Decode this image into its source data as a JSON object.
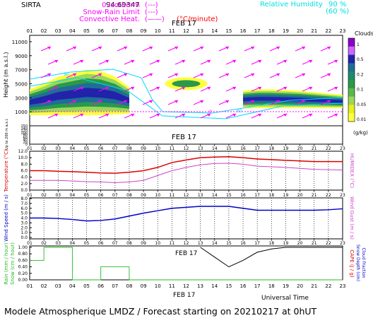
{
  "header": {
    "site": "SIRTA",
    "coords": "94.69347",
    "legend_left": [
      {
        "label": "0 Isotherm",
        "swatch": "(---)",
        "color": "#ff00ff"
      },
      {
        "label": "Snow-Rain Limit",
        "swatch": "(---)",
        "color": "#ff00ff"
      },
      {
        "label": "Convective Heat.",
        "swatch": "(——)",
        "color": "#ff00ff",
        "extra": "(°C/minute)",
        "extra_color": "#ff0000"
      }
    ],
    "legend_right": [
      {
        "label": "Relative Humidity",
        "v1": "90 %",
        "v2": "(60 %)",
        "color": "#00e0e0"
      }
    ]
  },
  "footer": {
    "universal_time": "Universal Time",
    "date": "FEB 17",
    "title": "Modele Atmospherique LMDZ / Forecast starting on 20210217 at 0hUT"
  },
  "hour_labels": [
    "01",
    "02",
    "03",
    "04",
    "05",
    "06",
    "07",
    "08",
    "09",
    "10",
    "11",
    "12",
    "13",
    "14",
    "15",
    "16",
    "17",
    "18",
    "19",
    "20",
    "21",
    "22",
    "23"
  ],
  "date_label": "FEB 17",
  "colors": {
    "red": "#e00000",
    "violet": "#cc44cc",
    "blue": "#0000cc",
    "cyan": "#00d8ff",
    "magenta": "#ff00ff",
    "black": "#000000",
    "green": "#22bb22"
  },
  "chart_data": [
    {
      "type": "heatmap",
      "name": "clouds",
      "ylabel": "Height  (m a.s.l.)",
      "ylabel2": "Up to 200 m a.s.l.",
      "y_ticks_upper": [
        "11000",
        "9000",
        "7000",
        "5000",
        "3000",
        "1000"
      ],
      "y_ticks_lower": [
        "150",
        "140",
        "120",
        "100",
        "80",
        "60",
        "40",
        "20",
        "0"
      ],
      "colorbar_title": "Clouds",
      "colorbar_unit": "(g/kg)",
      "colorbar_ticks": [
        "1",
        "0.5",
        "0.2",
        "0.1",
        "0.05",
        "0.01"
      ],
      "colorbar_colors": [
        "#8800cc",
        "#cc66ff",
        "#2222aa",
        "#1e6e96",
        "#1c8c6a",
        "#2a9a4a",
        "#5ab84a",
        "#9bd85a",
        "#e6f01a",
        "#ffff40"
      ],
      "contour_labels": [
        "90",
        "60",
        "0"
      ],
      "x": [
        "01",
        "02",
        "03",
        "04",
        "05",
        "06",
        "07",
        "08",
        "09",
        "10",
        "11",
        "12",
        "13",
        "14",
        "15",
        "16",
        "17",
        "18",
        "19",
        "20",
        "21",
        "22",
        "23"
      ],
      "cloud_base_m": [
        500,
        500,
        500,
        500,
        500,
        500,
        600,
        700,
        null,
        null,
        null,
        null,
        null,
        null,
        null,
        1500,
        1500,
        1500,
        1500,
        1500,
        1500,
        1500,
        1500
      ],
      "cloud_top_m": [
        4200,
        5000,
        6000,
        6500,
        7000,
        6800,
        6000,
        4500,
        null,
        null,
        null,
        null,
        null,
        null,
        null,
        4000,
        4200,
        4200,
        4100,
        4000,
        3800,
        3600,
        3400
      ]
    },
    {
      "type": "line",
      "name": "temperature",
      "ylabel": "Temperature (°C)",
      "ylabel_right": "HUMIDEX (°C)",
      "y_ticks": [
        "12.0",
        "10.0",
        "8.0",
        "6.0",
        "4.0",
        "2.0",
        "0.0"
      ],
      "ylim": [
        0,
        12
      ],
      "x": [
        "01",
        "02",
        "03",
        "04",
        "05",
        "06",
        "07",
        "08",
        "09",
        "10",
        "11",
        "12",
        "13",
        "14",
        "15",
        "16",
        "17",
        "18",
        "19",
        "20",
        "21",
        "22",
        "23"
      ],
      "series": [
        {
          "values": [
            6.0,
            6.0,
            5.8,
            5.7,
            5.5,
            5.3,
            5.2,
            5.5,
            6.0,
            7.0,
            8.5,
            9.3,
            10.0,
            10.2,
            10.3,
            10.0,
            9.6,
            9.4,
            9.2,
            9.0,
            8.8,
            8.8,
            8.8
          ],
          "color": "#e00000"
        },
        {
          "values": [
            3.0,
            3.0,
            3.0,
            2.8,
            2.6,
            2.5,
            2.3,
            2.5,
            3.0,
            4.5,
            6.0,
            7.0,
            7.8,
            8.2,
            8.3,
            8.0,
            7.4,
            7.2,
            7.0,
            6.7,
            6.4,
            6.3,
            6.2
          ],
          "color": "#cc44cc"
        }
      ]
    },
    {
      "type": "line",
      "name": "wind",
      "ylabel": "Wind Speed (m / s)",
      "ylabel_right": "Wind Gust (m / s)",
      "y_ticks": [
        "8.0",
        "7.0",
        "6.0",
        "5.0",
        "4.0",
        "3.0",
        "2.0",
        "1.0",
        "0.0"
      ],
      "ylim": [
        0,
        8
      ],
      "x": [
        "01",
        "02",
        "03",
        "04",
        "05",
        "06",
        "07",
        "08",
        "09",
        "10",
        "11",
        "12",
        "13",
        "14",
        "15",
        "16",
        "17",
        "18",
        "19",
        "20",
        "21",
        "22",
        "23"
      ],
      "series": [
        {
          "values": [
            4.0,
            4.0,
            3.9,
            3.7,
            3.4,
            3.5,
            3.8,
            4.4,
            5.0,
            5.5,
            6.0,
            6.2,
            6.4,
            6.4,
            6.4,
            6.0,
            5.6,
            5.6,
            5.6,
            5.6,
            5.6,
            5.7,
            5.9
          ],
          "color": "#0000cc"
        }
      ]
    },
    {
      "type": "line",
      "name": "precipitation",
      "ylabel": "Rain (mm / hour)",
      "ylabel2": "Snow (cm / hour)",
      "ylabel_right": "CAPE (J / g)",
      "ylabel_right2": "Snow Depth (cm)",
      "ylabel_right3": "Cloud Fraction",
      "y_ticks": [
        "1.00",
        "0.80",
        "0.60",
        "0.40",
        "0.20",
        "0.00"
      ],
      "ylim": [
        0,
        1
      ],
      "x": [
        "01",
        "02",
        "03",
        "04",
        "05",
        "06",
        "07",
        "08",
        "09",
        "10",
        "11",
        "12",
        "13",
        "14",
        "15",
        "16",
        "17",
        "18",
        "19",
        "20",
        "21",
        "22",
        "23"
      ],
      "series": [
        {
          "values": [
            0.6,
            1.0,
            1.0,
            0.0,
            0.0,
            0.4,
            0.4,
            0.0,
            0,
            0,
            0,
            0,
            0,
            0,
            0,
            0,
            0,
            0,
            0,
            0,
            0,
            0,
            0
          ],
          "color": "#22bb22"
        },
        {
          "values": [
            null,
            null,
            null,
            null,
            null,
            null,
            null,
            null,
            null,
            null,
            null,
            null,
            1.0,
            0.7,
            0.4,
            0.6,
            0.85,
            0.95,
            1.0,
            1.0,
            1.0,
            1.0,
            1.0
          ],
          "color": "#000000"
        }
      ]
    }
  ]
}
